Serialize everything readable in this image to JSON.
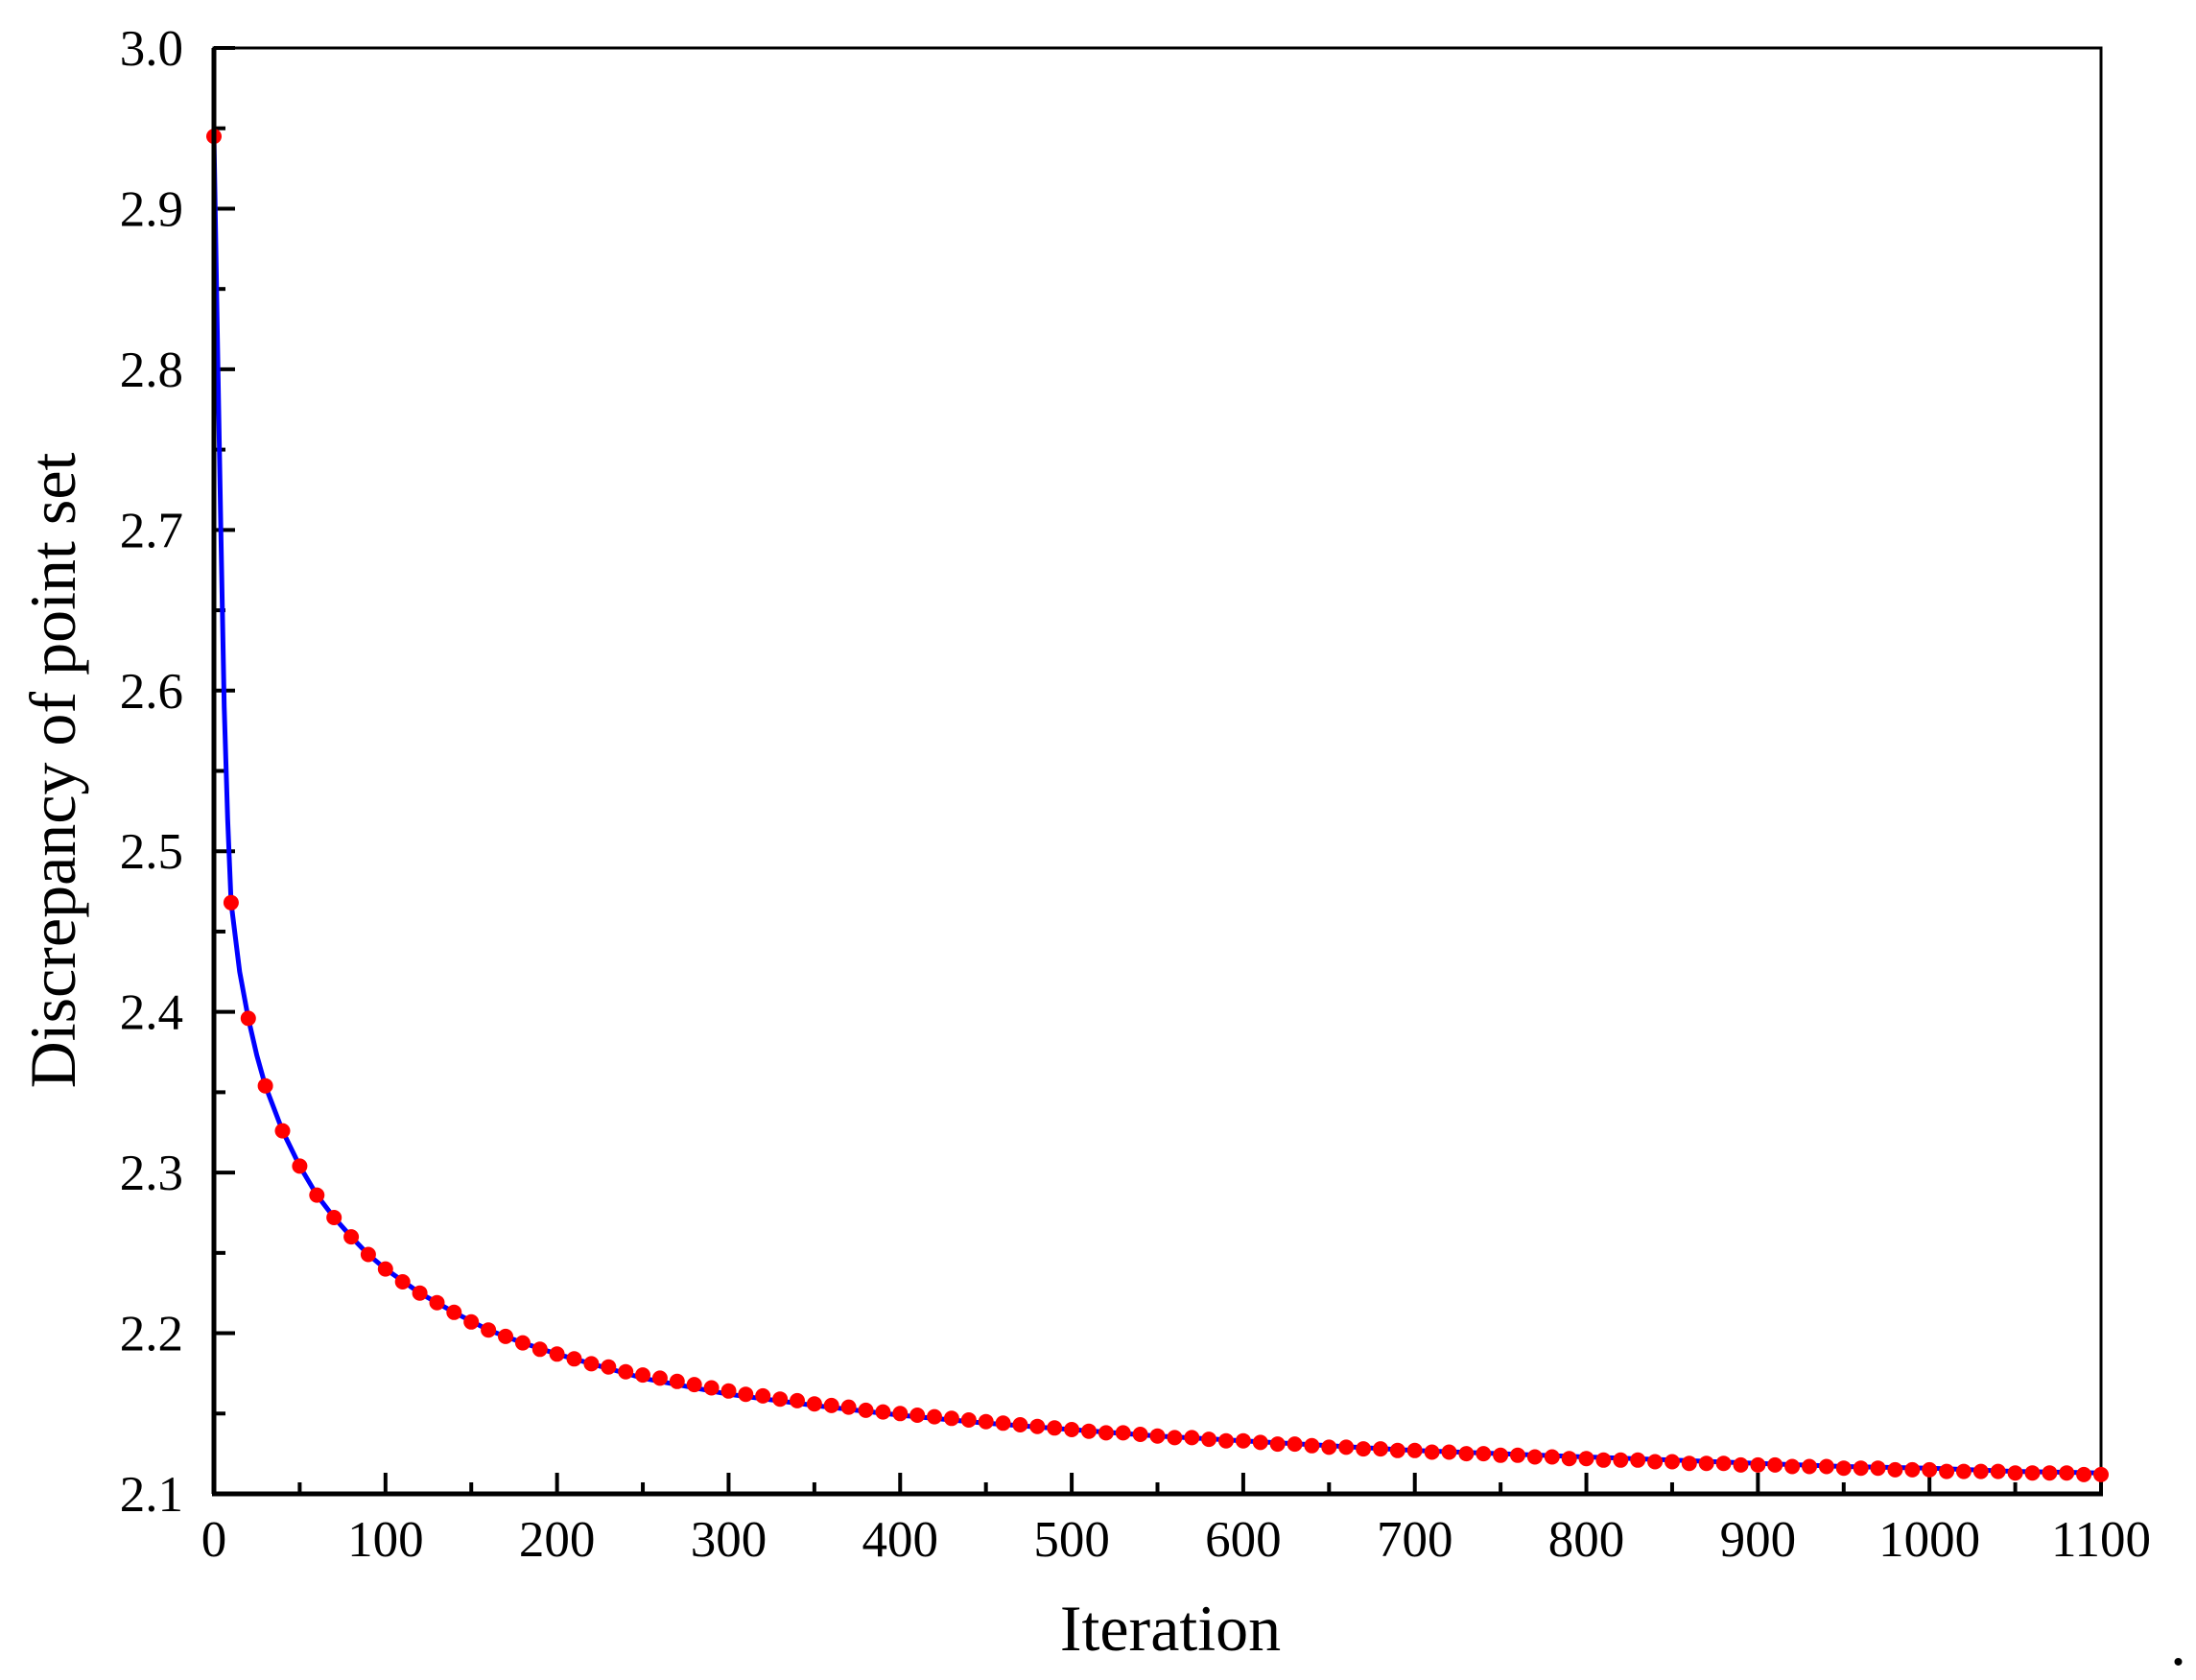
{
  "chart_data": {
    "type": "line",
    "title": "",
    "xlabel": "Iteration",
    "ylabel": "Discrepancy of point set",
    "xlim": [
      0,
      1100
    ],
    "ylim": [
      2.1,
      3.0
    ],
    "x_ticks": [
      "0",
      "100",
      "200",
      "300",
      "400",
      "500",
      "600",
      "700",
      "800",
      "900",
      "1000",
      "1100"
    ],
    "y_ticks": [
      "2.1",
      "2.2",
      "2.3",
      "2.4",
      "2.5",
      "2.6",
      "2.7",
      "2.8",
      "2.9",
      "3.0"
    ],
    "grid": false,
    "legend": "none",
    "trailing_mark": ".",
    "colors": {
      "line": "#0000ff",
      "markers": "#ff0000",
      "axes": "#000000"
    },
    "series": [
      {
        "style": "line",
        "x": [
          0,
          2,
          4,
          6,
          8,
          10,
          15,
          20,
          25,
          30,
          40,
          50,
          60,
          70,
          80,
          90,
          100,
          120,
          140,
          160,
          180,
          200,
          250,
          300,
          350,
          400,
          450,
          500,
          550,
          600,
          650,
          700,
          750,
          800,
          850,
          900,
          950,
          1000,
          1050,
          1100
        ],
        "y": [
          2.945,
          2.82,
          2.7,
          2.59,
          2.52,
          2.468,
          2.425,
          2.396,
          2.373,
          2.354,
          2.326,
          2.304,
          2.286,
          2.272,
          2.26,
          2.249,
          2.24,
          2.225,
          2.213,
          2.202,
          2.194,
          2.187,
          2.172,
          2.162,
          2.155,
          2.149,
          2.144,
          2.14,
          2.136,
          2.133,
          2.13,
          2.127,
          2.125,
          2.123,
          2.121,
          2.119,
          2.117,
          2.116,
          2.114,
          2.113
        ]
      },
      {
        "style": "markers",
        "x": [
          0,
          10,
          20,
          30,
          40,
          50,
          60,
          70,
          80,
          90,
          100,
          110,
          120,
          130,
          140,
          150,
          160,
          170,
          180,
          190,
          200,
          210,
          220,
          230,
          240,
          250,
          260,
          270,
          280,
          290,
          300,
          310,
          320,
          330,
          340,
          350,
          360,
          370,
          380,
          390,
          400,
          410,
          420,
          430,
          440,
          450,
          460,
          470,
          480,
          490,
          500,
          510,
          520,
          530,
          540,
          550,
          560,
          570,
          580,
          590,
          600,
          610,
          620,
          630,
          640,
          650,
          660,
          670,
          680,
          690,
          700,
          710,
          720,
          730,
          740,
          750,
          760,
          770,
          780,
          790,
          800,
          810,
          820,
          830,
          840,
          850,
          860,
          870,
          880,
          890,
          900,
          910,
          920,
          930,
          940,
          950,
          960,
          970,
          980,
          990,
          1000,
          1010,
          1020,
          1030,
          1040,
          1050,
          1060,
          1070,
          1080,
          1090,
          1100
        ],
        "y": [
          2.945,
          2.468,
          2.396,
          2.354,
          2.326,
          2.304,
          2.286,
          2.272,
          2.26,
          2.249,
          2.24,
          2.232,
          2.225,
          2.219,
          2.213,
          2.207,
          2.202,
          2.198,
          2.194,
          2.19,
          2.187,
          2.184,
          2.181,
          2.179,
          2.176,
          2.174,
          2.172,
          2.17,
          2.168,
          2.166,
          2.164,
          2.162,
          2.161,
          2.159,
          2.158,
          2.156,
          2.155,
          2.154,
          2.152,
          2.151,
          2.15,
          2.149,
          2.148,
          2.147,
          2.146,
          2.145,
          2.144,
          2.143,
          2.142,
          2.141,
          2.14,
          2.139,
          2.138,
          2.138,
          2.137,
          2.136,
          2.135,
          2.135,
          2.134,
          2.133,
          2.133,
          2.132,
          2.131,
          2.131,
          2.13,
          2.129,
          2.129,
          2.128,
          2.128,
          2.127,
          2.127,
          2.126,
          2.126,
          2.125,
          2.125,
          2.124,
          2.124,
          2.123,
          2.123,
          2.122,
          2.122,
          2.121,
          2.121,
          2.121,
          2.12,
          2.12,
          2.119,
          2.119,
          2.119,
          2.118,
          2.118,
          2.118,
          2.117,
          2.117,
          2.117,
          2.116,
          2.116,
          2.116,
          2.115,
          2.115,
          2.115,
          2.114,
          2.114,
          2.114,
          2.114,
          2.113,
          2.113,
          2.113,
          2.113,
          2.112,
          2.112
        ]
      }
    ]
  }
}
